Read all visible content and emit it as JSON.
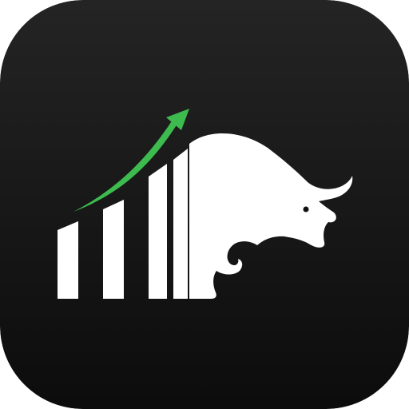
{
  "app_icon": {
    "name": "bull-market-icon",
    "background": {
      "top_color": "#242424",
      "bottom_color": "#0c0c0c"
    },
    "bars": {
      "color": "#ffffff",
      "count": 4
    },
    "trend_arrow": {
      "color": "#3dbb4f",
      "direction": "up-right"
    },
    "bull": {
      "color": "#ffffff",
      "pose": "charging-left"
    }
  }
}
